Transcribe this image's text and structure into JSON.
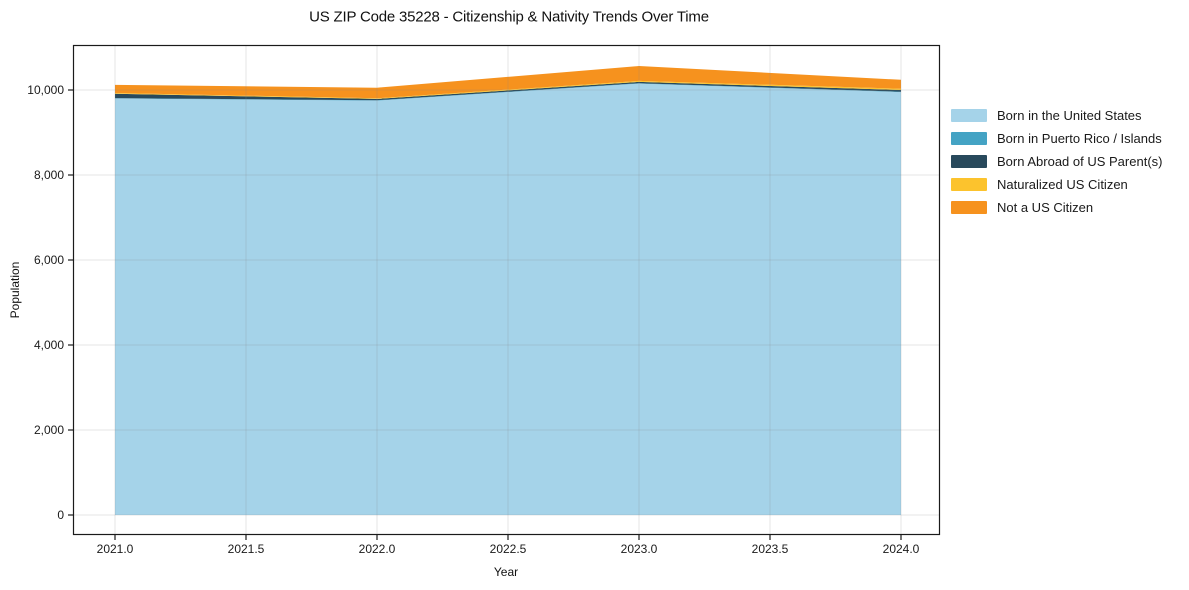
{
  "chart_data": {
    "type": "area",
    "stacked": true,
    "title": "US ZIP Code 35228 - Citizenship & Nativity Trends Over Time",
    "xlabel": "Year",
    "ylabel": "Population",
    "x": [
      2021,
      2022,
      2023,
      2024
    ],
    "series": [
      {
        "name": "Born in the United States",
        "color": "#a5d3e9",
        "values": [
          9800,
          9750,
          10150,
          9950
        ]
      },
      {
        "name": "Born in Puerto Rico / Islands",
        "color": "#44a3c4",
        "values": [
          10,
          10,
          10,
          10
        ]
      },
      {
        "name": "Born Abroad of US Parent(s)",
        "color": "#28495c",
        "values": [
          100,
          30,
          30,
          40
        ]
      },
      {
        "name": "Naturalized US Citizen",
        "color": "#fcc32d",
        "values": [
          20,
          15,
          25,
          30
        ]
      },
      {
        "name": "Not a US Citizen",
        "color": "#f6921e",
        "values": [
          190,
          250,
          350,
          210
        ]
      }
    ],
    "totals": [
      10120,
      10055,
      10565,
      10240
    ],
    "x_ticks": [
      2021.0,
      2021.5,
      2022.0,
      2022.5,
      2023.0,
      2023.5,
      2024.0
    ],
    "x_tick_labels": [
      "2021.0",
      "2021.5",
      "2022.0",
      "2022.5",
      "2023.0",
      "2023.5",
      "2024.0"
    ],
    "y_ticks": [
      0,
      2000,
      4000,
      6000,
      8000,
      10000
    ],
    "y_tick_labels": [
      "0",
      "2,000",
      "4,000",
      "6,000",
      "8,000",
      "10,000"
    ],
    "xlim": [
      2020.84,
      2024.15
    ],
    "ylim": [
      -430,
      11060
    ],
    "grid": true,
    "legend_position": "outside center right",
    "colors": {
      "spine": "#1a1a1a",
      "gridline": "rgba(130,130,130,0.22)",
      "background": "#ffffff",
      "text": "#1a1a1a"
    }
  }
}
